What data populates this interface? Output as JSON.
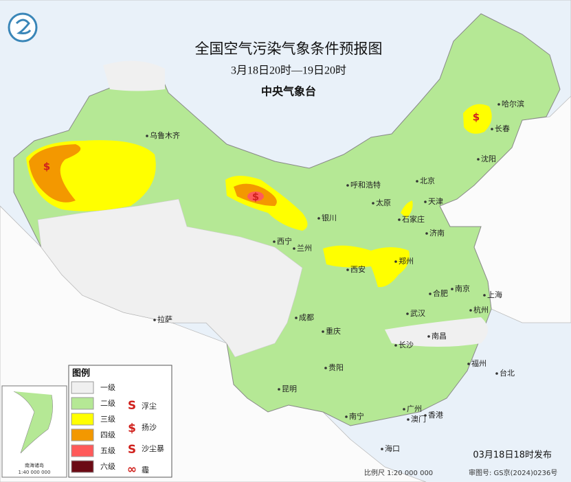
{
  "header": {
    "title": "全国空气污染气象条件预报图",
    "subtitle": "3月18日20时—19日20时",
    "issuer": "中央气象台"
  },
  "cities": [
    "乌鲁木齐",
    "哈尔滨",
    "长春",
    "沈阳",
    "北京",
    "呼和浩特",
    "天津",
    "石家庄",
    "银川",
    "太原",
    "济南",
    "西宁",
    "兰州",
    "郑州",
    "西安",
    "合肥",
    "南京",
    "上海",
    "杭州",
    "拉萨",
    "成都",
    "武汉",
    "重庆",
    "长沙",
    "南昌",
    "贵阳",
    "福州",
    "台北",
    "昆明",
    "广州",
    "南宁",
    "澳门",
    "香港",
    "海口"
  ],
  "legend": {
    "title": "图例",
    "levels": [
      {
        "label": "一级",
        "color": "#f0f0f0"
      },
      {
        "label": "二级",
        "color": "#b5e895"
      },
      {
        "label": "三级",
        "color": "#ffff00"
      },
      {
        "label": "四级",
        "color": "#f39800"
      },
      {
        "label": "五级",
        "color": "#ff5a5a"
      },
      {
        "label": "六级",
        "color": "#6b0a14"
      }
    ],
    "symbols": [
      "浮尘",
      "扬沙",
      "沙尘暴",
      "霾"
    ]
  },
  "inset": {
    "title": "南海诸岛",
    "scale": "1:40 000 000"
  },
  "footer": {
    "issued": "03月18日18时发布",
    "scale": "比例尺 1:20 000 000",
    "approval": "审图号: GS京(2024)0236号"
  }
}
